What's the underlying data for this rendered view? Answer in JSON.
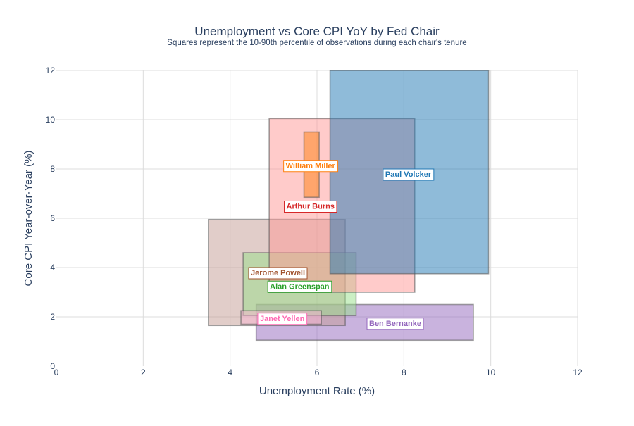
{
  "chart_data": {
    "type": "rectangle-range",
    "title": "Unemployment vs Core CPI YoY by Fed Chair",
    "subtitle": "Squares represent the 10-90th percentile of observations during each chair's tenure",
    "xlabel": "Unemployment Rate (%)",
    "ylabel": "Core CPI Year-over-Year (%)",
    "xlim": [
      0,
      12
    ],
    "ylim": [
      0,
      12
    ],
    "xticks": [
      0,
      2,
      4,
      6,
      8,
      10,
      12
    ],
    "yticks": [
      0,
      2,
      4,
      6,
      8,
      10,
      12
    ],
    "grid": true,
    "series": [
      {
        "name": "Ben Bernanke",
        "x0": 4.6,
        "x1": 9.6,
        "y0": 1.05,
        "y1": 2.5,
        "color": "#9467bd",
        "label_x": 7.8,
        "label_y": 1.75
      },
      {
        "name": "Jerome Powell",
        "x0": 3.5,
        "x1": 6.65,
        "y0": 1.65,
        "y1": 5.95,
        "color": "#c49c94",
        "label_x": 5.1,
        "label_y": 3.8,
        "label_color": "#a0522d"
      },
      {
        "name": "Alan Greenspan",
        "x0": 4.3,
        "x1": 6.9,
        "y0": 2.05,
        "y1": 4.6,
        "color": "#98df8a",
        "label_x": 5.6,
        "label_y": 3.25,
        "label_color": "#2ca02c"
      },
      {
        "name": "Arthur Burns",
        "x0": 4.9,
        "x1": 8.25,
        "y0": 3.0,
        "y1": 10.05,
        "color": "#ff9896",
        "label_x": 5.85,
        "label_y": 6.5,
        "label_color": "#d62728"
      },
      {
        "name": "Paul Volcker",
        "x0": 6.3,
        "x1": 9.95,
        "y0": 3.75,
        "y1": 12.0,
        "color": "#1f77b4",
        "label_x": 8.1,
        "label_y": 7.8
      },
      {
        "name": "Janet Yellen",
        "x0": 4.25,
        "x1": 6.1,
        "y0": 1.7,
        "y1": 2.25,
        "color": "#f7b6d2",
        "label_x": 5.2,
        "label_y": 1.95,
        "label_color": "#ff69b4"
      },
      {
        "name": "William Miller",
        "x0": 5.7,
        "x1": 6.05,
        "y0": 6.85,
        "y1": 9.5,
        "color": "#ff7f0e",
        "label_x": 5.85,
        "label_y": 8.15
      }
    ]
  }
}
